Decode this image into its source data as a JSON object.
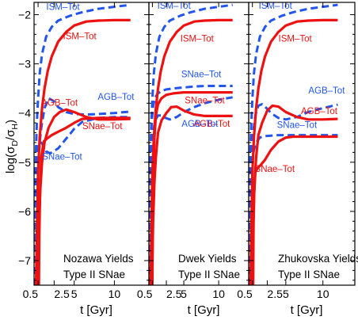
{
  "colors": {
    "red": "#ee1111",
    "blue": "#2255ee"
  },
  "chart_data": {
    "type": "line",
    "ylabel": "log(σ_D/σ_H)",
    "ylabel_main": "log(σ",
    "ylabel_sub1": "D",
    "ylabel_mid": "/σ",
    "ylabel_sub2": "H",
    "ylabel_end": ")",
    "ylim": [
      -7.5,
      -1.75
    ],
    "xlim": [
      0,
      14.3
    ],
    "yticks": [
      -7,
      -6,
      -5,
      -4,
      -3,
      -2
    ],
    "ytick_labels": [
      "−7",
      "−6",
      "−5",
      "−4",
      "−3",
      "−2"
    ],
    "xticks": [
      0.5,
      2.5,
      5,
      10
    ],
    "xtick_labels": [
      "0.5",
      "2.5",
      "5",
      "10"
    ],
    "xlabel": "t [Gyr]",
    "panels": [
      {
        "note_line1": "Nozawa Yields",
        "note_line2": "Type II SNae",
        "series": [
          {
            "name": "ISM–Tot",
            "style": "solid",
            "color": "red",
            "x": [
              0.25,
              0.3,
              0.4,
              0.5,
              0.7,
              1.0,
              1.3,
              1.7,
              2.2,
              3,
              4,
              5,
              6.5,
              8,
              10,
              12
            ],
            "y": [
              -7.5,
              -7.0,
              -6.0,
              -5.2,
              -4.5,
              -3.9,
              -3.5,
              -3.15,
              -2.85,
              -2.55,
              -2.35,
              -2.22,
              -2.14,
              -2.12,
              -2.11,
              -2.11
            ]
          },
          {
            "name": "AGB–Tot",
            "style": "solid",
            "color": "red",
            "x": [
              0.45,
              0.5,
              0.6,
              0.8,
              1.0,
              1.3,
              1.8,
              2.5,
              3.2,
              4,
              5,
              6.5,
              8,
              10,
              12
            ],
            "y": [
              -7.5,
              -7.0,
              -6.2,
              -5.5,
              -5.0,
              -4.6,
              -4.3,
              -4.08,
              -3.98,
              -3.93,
              -3.98,
              -4.08,
              -4.13,
              -4.13,
              -4.12
            ]
          },
          {
            "name": "SNae–Tot",
            "style": "solid",
            "color": "red",
            "x": [
              0.6,
              0.65,
              0.75,
              0.9,
              1.2,
              1.6,
              2.2,
              3,
              4,
              5,
              6,
              8,
              10,
              12
            ],
            "y": [
              -7.5,
              -6.5,
              -5.6,
              -4.9,
              -4.58,
              -4.52,
              -4.45,
              -4.38,
              -4.3,
              -4.2,
              -4.12,
              -4.1,
              -4.1,
              -4.1
            ]
          },
          {
            "name": "ISM–Tot",
            "style": "dashed",
            "color": "blue",
            "x": [
              0.08,
              0.12,
              0.18,
              0.25,
              0.35,
              0.5,
              0.7,
              1.0,
              1.5,
              2.2,
              3,
              4.5,
              6,
              8,
              10,
              12
            ],
            "y": [
              -7.5,
              -6.2,
              -5.3,
              -4.7,
              -4.2,
              -3.7,
              -3.2,
              -2.8,
              -2.45,
              -2.25,
              -2.12,
              -2.02,
              -1.95,
              -1.88,
              -1.84,
              -1.8
            ]
          },
          {
            "name": "AGB–Tot",
            "style": "dashed",
            "color": "blue",
            "x": [
              0.1,
              0.15,
              0.25,
              0.4,
              0.6,
              0.9,
              1.3,
              1.8,
              2.4,
              3,
              4,
              5,
              6.5,
              8,
              10,
              12
            ],
            "y": [
              -7.5,
              -6.5,
              -5.6,
              -5.1,
              -4.75,
              -4.3,
              -3.9,
              -3.7,
              -3.75,
              -3.88,
              -3.98,
              -4.02,
              -4.03,
              -4.02,
              -4.0,
              -3.97
            ]
          },
          {
            "name": "SNae–Tot",
            "style": "dashed",
            "color": "blue",
            "x": [
              0.1,
              0.2,
              0.3,
              0.5,
              0.7,
              1.0,
              1.5,
              2,
              3,
              4,
              5,
              6,
              8,
              10,
              12
            ],
            "y": [
              -7.5,
              -5.8,
              -5.2,
              -4.7,
              -4.58,
              -4.62,
              -4.78,
              -4.82,
              -4.72,
              -4.52,
              -4.32,
              -4.18,
              -4.1,
              -4.08,
              -4.08
            ]
          }
        ]
      },
      {
        "note_line1": "Dwek Yields",
        "note_line2": "Type II SNae",
        "series": [
          {
            "name": "ISM–Tot",
            "style": "solid",
            "color": "red",
            "x": [
              0.25,
              0.3,
              0.4,
              0.5,
              0.7,
              1.0,
              1.3,
              1.7,
              2.2,
              3,
              4,
              5,
              6.5,
              8,
              10,
              12
            ],
            "y": [
              -7.5,
              -7.0,
              -6.0,
              -5.2,
              -4.5,
              -3.9,
              -3.5,
              -3.15,
              -2.85,
              -2.55,
              -2.35,
              -2.22,
              -2.14,
              -2.12,
              -2.11,
              -2.11
            ]
          },
          {
            "name": "AGB–Tot",
            "style": "solid",
            "color": "red",
            "x": [
              0.45,
              0.5,
              0.6,
              0.8,
              1.0,
              1.3,
              1.8,
              2.5,
              3.2,
              4,
              5,
              6.5,
              8,
              10,
              12
            ],
            "y": [
              -7.5,
              -7.0,
              -6.2,
              -5.4,
              -4.9,
              -4.4,
              -4.15,
              -4.0,
              -3.88,
              -3.87,
              -3.95,
              -4.03,
              -4.06,
              -4.06,
              -4.06
            ]
          },
          {
            "name": "SNae–Tot",
            "style": "solid",
            "color": "red",
            "x": [
              0.5,
              0.55,
              0.65,
              0.8,
              1.0,
              1.3,
              1.8,
              2.5,
              3.5,
              5,
              6.5,
              8,
              10,
              12
            ],
            "y": [
              -7.5,
              -6.3,
              -5.2,
              -4.5,
              -4.05,
              -3.82,
              -3.7,
              -3.63,
              -3.6,
              -3.58,
              -3.58,
              -3.58,
              -3.58,
              -3.58
            ]
          },
          {
            "name": "ISM–Tot",
            "style": "dashed",
            "color": "blue",
            "x": [
              0.08,
              0.12,
              0.18,
              0.25,
              0.35,
              0.5,
              0.7,
              1.0,
              1.5,
              2.2,
              3,
              4.5,
              6,
              8,
              10,
              12
            ],
            "y": [
              -7.5,
              -6.2,
              -5.3,
              -4.7,
              -4.2,
              -3.7,
              -3.2,
              -2.8,
              -2.45,
              -2.25,
              -2.12,
              -2.02,
              -1.95,
              -1.88,
              -1.84,
              -1.8
            ]
          },
          {
            "name": "AGB–Tot",
            "style": "dashed",
            "color": "blue",
            "x": [
              0.1,
              0.15,
              0.25,
              0.4,
              0.6,
              0.9,
              1.3,
              1.8,
              2.4,
              3,
              4,
              5,
              6.5,
              8,
              10,
              12
            ],
            "y": [
              -7.5,
              -6.3,
              -5.4,
              -4.8,
              -4.4,
              -4.15,
              -4.05,
              -4.05,
              -4.1,
              -4.13,
              -4.08,
              -3.98,
              -3.88,
              -3.8,
              -3.73,
              -3.68
            ]
          },
          {
            "name": "SNae–Tot",
            "style": "dashed",
            "color": "blue",
            "x": [
              0.1,
              0.15,
              0.25,
              0.4,
              0.6,
              0.9,
              1.3,
              1.8,
              2.5,
              3.5,
              5,
              6.5,
              8,
              10,
              12
            ],
            "y": [
              -7.5,
              -5.8,
              -4.8,
              -4.2,
              -3.85,
              -3.68,
              -3.6,
              -3.55,
              -3.52,
              -3.5,
              -3.48,
              -3.46,
              -3.45,
              -3.45,
              -3.45
            ]
          }
        ]
      },
      {
        "note_line1": "Zhukovska Yields",
        "note_line2": "Type II SNae",
        "series": [
          {
            "name": "ISM–Tot",
            "style": "solid",
            "color": "red",
            "x": [
              0.25,
              0.3,
              0.4,
              0.5,
              0.7,
              1.0,
              1.3,
              1.7,
              2.2,
              3,
              4,
              5,
              6.5,
              8,
              10,
              12
            ],
            "y": [
              -7.5,
              -7.0,
              -6.0,
              -5.2,
              -4.5,
              -3.9,
              -3.5,
              -3.15,
              -2.85,
              -2.55,
              -2.35,
              -2.22,
              -2.14,
              -2.12,
              -2.11,
              -2.11
            ]
          },
          {
            "name": "AGB–Tot",
            "style": "solid",
            "color": "red",
            "x": [
              0.45,
              0.5,
              0.6,
              0.8,
              1.0,
              1.3,
              1.8,
              2.5,
              3.2,
              4,
              5,
              6.5,
              8,
              10,
              12
            ],
            "y": [
              -7.5,
              -7.0,
              -6.2,
              -5.4,
              -4.9,
              -4.45,
              -4.2,
              -3.95,
              -3.85,
              -3.87,
              -3.98,
              -4.08,
              -4.13,
              -4.13,
              -4.12
            ]
          },
          {
            "name": "SNae–Tot",
            "style": "solid",
            "color": "red",
            "x": [
              0.6,
              0.65,
              0.75,
              0.9,
              1.2,
              1.6,
              2.2,
              3,
              4,
              5,
              6,
              8,
              10,
              12
            ],
            "y": [
              -7.5,
              -6.3,
              -5.6,
              -5.2,
              -5.12,
              -5.06,
              -4.95,
              -4.75,
              -4.58,
              -4.5,
              -4.48,
              -4.48,
              -4.48,
              -4.48
            ]
          },
          {
            "name": "ISM–Tot",
            "style": "dashed",
            "color": "blue",
            "x": [
              0.08,
              0.12,
              0.18,
              0.25,
              0.35,
              0.5,
              0.7,
              1.0,
              1.5,
              2.2,
              3,
              4.5,
              6,
              8,
              10,
              12
            ],
            "y": [
              -7.5,
              -6.2,
              -5.3,
              -4.7,
              -4.2,
              -3.7,
              -3.2,
              -2.8,
              -2.45,
              -2.25,
              -2.12,
              -2.02,
              -1.95,
              -1.88,
              -1.84,
              -1.8
            ]
          },
          {
            "name": "AGB–Tot",
            "style": "dashed",
            "color": "blue",
            "x": [
              0.1,
              0.15,
              0.25,
              0.4,
              0.6,
              0.9,
              1.3,
              1.8,
              2.4,
              3,
              4,
              5,
              6.5,
              8,
              10,
              12
            ],
            "y": [
              -7.5,
              -6.5,
              -5.5,
              -4.9,
              -4.4,
              -4.05,
              -3.85,
              -3.82,
              -3.9,
              -4.0,
              -4.1,
              -4.13,
              -4.08,
              -3.98,
              -3.9,
              -3.83
            ]
          },
          {
            "name": "SNae–Tot",
            "style": "dashed",
            "color": "blue",
            "x": [
              0.1,
              0.2,
              0.3,
              0.5,
              0.7,
              1.0,
              1.5,
              2,
              3,
              4,
              5,
              6.5,
              8,
              10,
              12
            ],
            "y": [
              -7.5,
              -5.8,
              -5.3,
              -4.95,
              -4.75,
              -4.6,
              -4.5,
              -4.47,
              -4.46,
              -4.45,
              -4.45,
              -4.45,
              -4.45,
              -4.45,
              -4.45
            ]
          }
        ]
      }
    ]
  }
}
